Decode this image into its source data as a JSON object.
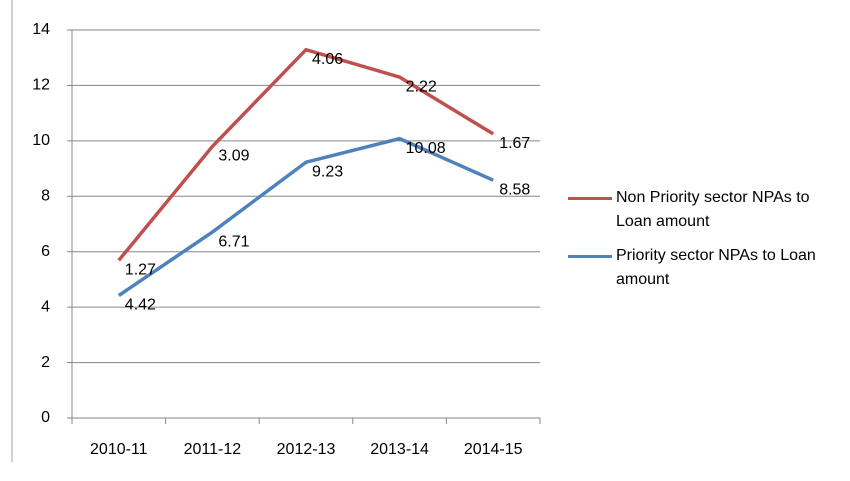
{
  "chart_data": {
    "type": "line",
    "stacked": true,
    "categories": [
      "2010-11",
      "2011-12",
      "2012-13",
      "2013-14",
      "2014-15"
    ],
    "series": [
      {
        "name": "Non Priority sector NPAs to Loan amount",
        "color": "#c0504d",
        "values": [
          1.27,
          3.09,
          4.06,
          2.22,
          1.67
        ]
      },
      {
        "name": "Priority sector NPAs to Loan amount",
        "color": "#4f81bd",
        "values": [
          4.42,
          6.71,
          9.23,
          10.08,
          8.58
        ]
      }
    ],
    "ylim": [
      0,
      14
    ],
    "yticks": [
      0,
      2,
      4,
      6,
      8,
      10,
      12,
      14
    ],
    "grid": true,
    "legend": "right"
  }
}
